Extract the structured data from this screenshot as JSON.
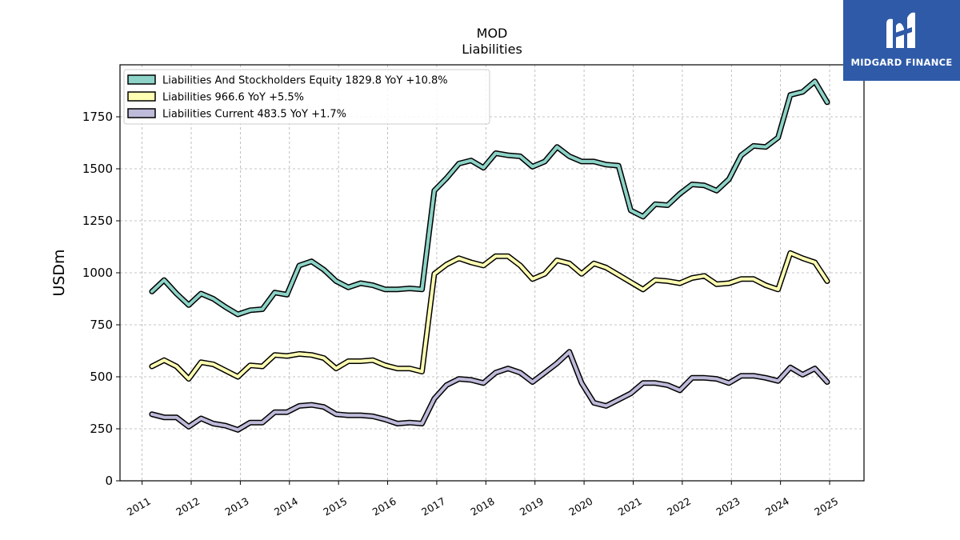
{
  "chart_data": {
    "type": "line",
    "title": "MOD",
    "subtitle": "Liabilities",
    "ylabel": "USDm",
    "xlabel": "",
    "ylim": [
      0,
      2000
    ],
    "xlim": [
      2010.55,
      2025.7
    ],
    "yticks": [
      0,
      250,
      500,
      750,
      1000,
      1250,
      1500,
      1750
    ],
    "xticks": [
      "2011",
      "2012",
      "2013",
      "2014",
      "2015",
      "2016",
      "2017",
      "2018",
      "2019",
      "2020",
      "2021",
      "2022",
      "2023",
      "2024",
      "2025"
    ],
    "grid": true,
    "legend_position": "top-left",
    "x": [
      2011.2,
      2011.45,
      2011.7,
      2011.95,
      2012.2,
      2012.45,
      2012.7,
      2012.95,
      2013.2,
      2013.45,
      2013.7,
      2013.95,
      2014.2,
      2014.45,
      2014.7,
      2014.95,
      2015.2,
      2015.45,
      2015.7,
      2015.95,
      2016.2,
      2016.45,
      2016.7,
      2016.95,
      2017.2,
      2017.45,
      2017.7,
      2017.95,
      2018.2,
      2018.45,
      2018.7,
      2018.95,
      2019.2,
      2019.45,
      2019.7,
      2019.95,
      2020.2,
      2020.45,
      2020.7,
      2020.95,
      2021.2,
      2021.45,
      2021.7,
      2021.95,
      2022.2,
      2022.45,
      2022.7,
      2022.95,
      2023.2,
      2023.45,
      2023.7,
      2023.95,
      2024.2,
      2024.45,
      2024.7,
      2024.95
    ],
    "series": [
      {
        "name": "Liabilities And Stockholders Equity",
        "legend_label": "Liabilities And Stockholders Equity  1829.8 YoY +10.8%",
        "color": "#8dd3c7",
        "values": [
          910,
          965,
          900,
          845,
          900,
          875,
          835,
          800,
          820,
          825,
          905,
          895,
          1035,
          1055,
          1015,
          960,
          930,
          950,
          940,
          920,
          920,
          925,
          920,
          1395,
          1455,
          1525,
          1540,
          1505,
          1575,
          1565,
          1560,
          1510,
          1535,
          1605,
          1560,
          1535,
          1535,
          1520,
          1515,
          1300,
          1270,
          1330,
          1325,
          1380,
          1425,
          1420,
          1395,
          1450,
          1565,
          1610,
          1605,
          1650,
          1855,
          1870,
          1920,
          1820
        ]
      },
      {
        "name": "Liabilities",
        "legend_label": "Liabilities  966.6 YoY +5.5%",
        "color": "#ffffb3",
        "values": [
          550,
          580,
          550,
          490,
          570,
          560,
          530,
          500,
          555,
          550,
          605,
          600,
          610,
          605,
          590,
          540,
          575,
          575,
          580,
          555,
          540,
          540,
          525,
          995,
          1040,
          1070,
          1050,
          1035,
          1080,
          1080,
          1035,
          970,
          995,
          1060,
          1045,
          995,
          1045,
          1025,
          990,
          955,
          920,
          965,
          960,
          950,
          975,
          985,
          945,
          950,
          970,
          970,
          940,
          920,
          1095,
          1070,
          1050,
          960
        ]
      },
      {
        "name": "Liabilities Current",
        "legend_label": "Liabilities Current  483.5 YoY +1.7%",
        "color": "#bebada",
        "values": [
          320,
          305,
          305,
          260,
          300,
          275,
          265,
          245,
          280,
          280,
          330,
          330,
          360,
          365,
          355,
          320,
          315,
          315,
          310,
          295,
          275,
          280,
          275,
          395,
          460,
          490,
          485,
          470,
          520,
          540,
          520,
          475,
          520,
          565,
          620,
          470,
          375,
          360,
          390,
          420,
          470,
          470,
          460,
          435,
          495,
          495,
          490,
          470,
          505,
          505,
          495,
          480,
          545,
          510,
          540,
          475
        ]
      }
    ]
  },
  "logo": {
    "text": "MIDGARD FINANCE"
  }
}
